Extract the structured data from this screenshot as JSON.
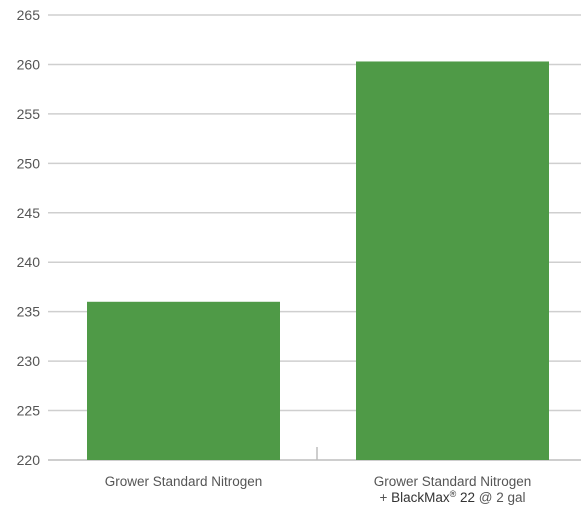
{
  "chart_data": {
    "type": "bar",
    "categories": [
      "Grower Standard Nitrogen",
      "Grower Standard Nitrogen + BlackMax® 22 @ 2 gal"
    ],
    "category_lines": [
      [
        "Grower Standard Nitrogen"
      ],
      [
        "Grower Standard Nitrogen",
        "+ BlackMax® 22 @ 2 gal"
      ]
    ],
    "values": [
      236,
      260.3
    ],
    "ylim": [
      220,
      265
    ],
    "yticks": [
      "220",
      "225",
      "230",
      "235",
      "240",
      "245",
      "250",
      "255",
      "260",
      "265"
    ],
    "grid": true,
    "title": "",
    "xlabel": "",
    "ylabel": "",
    "colors": {
      "bar": "#4f9a47",
      "grid": "#cfcfcf",
      "text": "#555555"
    }
  }
}
